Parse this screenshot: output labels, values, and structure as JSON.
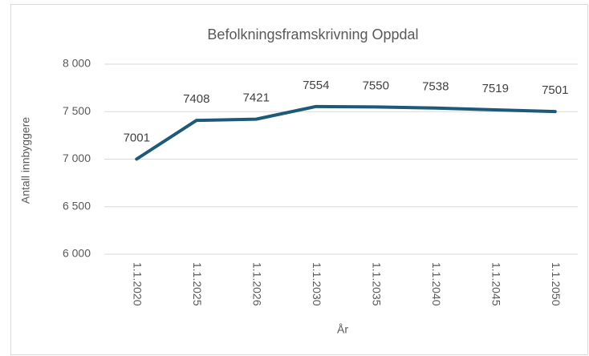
{
  "chart_data": {
    "type": "line",
    "title": "Befolkningsframskrivning Oppdal",
    "x_label": "År",
    "y_label": "Antall innbyggere",
    "categories": [
      "1.1.2020",
      "1.1.2025",
      "1.1.2026",
      "1.1.2030",
      "1.1.2035",
      "1.1.2040",
      "1.1.2045",
      "1.1.2050"
    ],
    "series": [
      {
        "name": "Antall innbyggere",
        "color": "#1d5a78",
        "values": [
          7001,
          7408,
          7421,
          7554,
          7550,
          7538,
          7519,
          7501
        ]
      }
    ],
    "ylim": [
      6000,
      8000
    ],
    "yticks": [
      {
        "value": 6000,
        "label": "6 000"
      },
      {
        "value": 6500,
        "label": "6 500"
      },
      {
        "value": 7000,
        "label": "7 000"
      },
      {
        "value": 7500,
        "label": "7 500"
      },
      {
        "value": 8000,
        "label": "8 000"
      }
    ],
    "grid": true
  }
}
